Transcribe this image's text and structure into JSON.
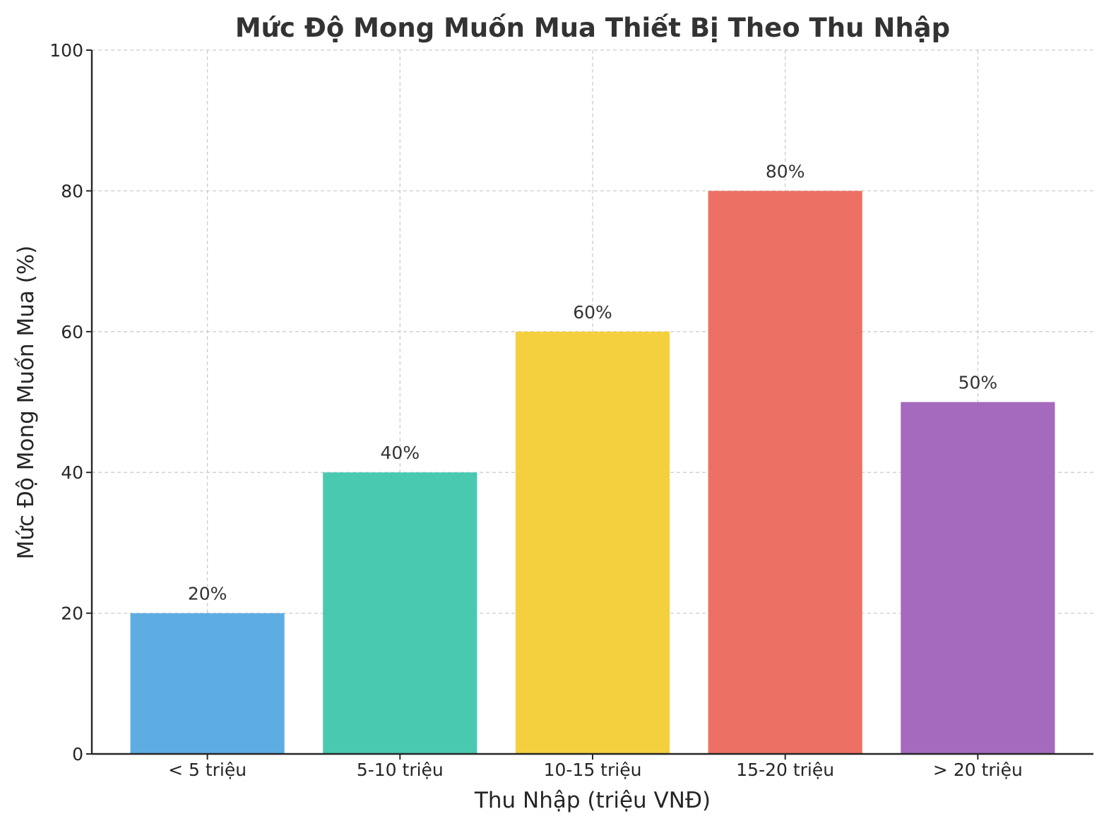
{
  "chart_data": {
    "type": "bar",
    "title": "Mức Độ Mong Muốn Mua Thiết Bị Theo Thu Nhập",
    "xlabel": "Thu Nhập (triệu VNĐ)",
    "ylabel": "Mức Độ Mong Muốn Mua (%)",
    "categories": [
      "< 5 triệu",
      "5-10 triệu",
      "10-15 triệu",
      "15-20 triệu",
      "> 20 triệu"
    ],
    "values": [
      20,
      40,
      60,
      80,
      50
    ],
    "data_labels": [
      "20%",
      "40%",
      "60%",
      "80%",
      "50%"
    ],
    "colors": [
      "#5dade2",
      "#48c9b0",
      "#f4d03f",
      "#ec7063",
      "#a569bd"
    ],
    "ylim": [
      0,
      100
    ],
    "yticks": [
      0,
      20,
      40,
      60,
      80,
      100
    ],
    "grid": true,
    "legend": "none"
  }
}
